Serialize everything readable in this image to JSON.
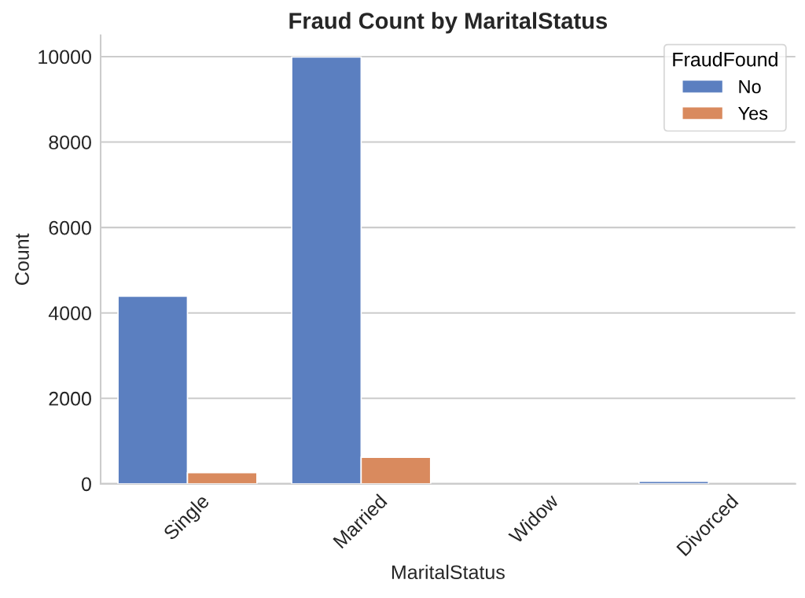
{
  "chart_data": {
    "type": "bar",
    "title": "Fraud Count by MaritalStatus",
    "xlabel": "MaritalStatus",
    "ylabel": "Count",
    "categories": [
      "Single",
      "Married",
      "Widow",
      "Divorced"
    ],
    "series": [
      {
        "name": "No",
        "color": "#5b7fc0",
        "values": [
          4390,
          9990,
          0,
          60
        ]
      },
      {
        "name": "Yes",
        "color": "#d98a5e",
        "values": [
          260,
          620,
          0,
          0
        ]
      }
    ],
    "legend_title": "FraudFound",
    "legend": "top right",
    "ylim": [
      0,
      10500
    ],
    "yticks": [
      0,
      2000,
      4000,
      6000,
      8000,
      10000
    ],
    "grid": "y"
  }
}
